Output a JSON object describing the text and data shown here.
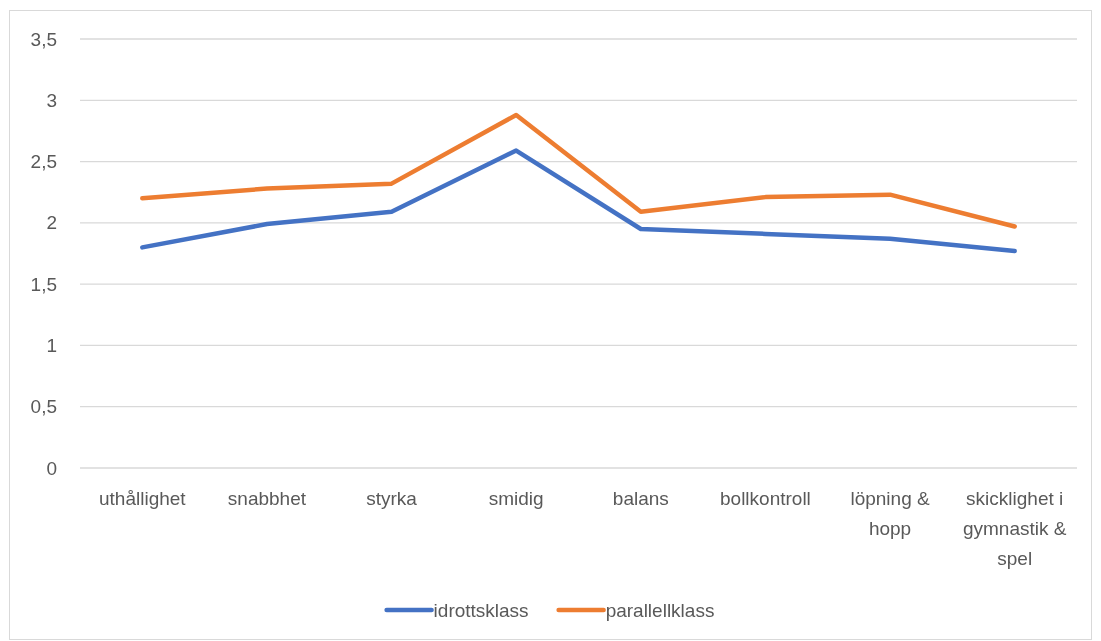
{
  "chart_data": {
    "type": "line",
    "categories": [
      "uthållighet",
      "snabbhet",
      "styrka",
      "smidig",
      "balans",
      "bollkontroll",
      "löpning & hopp",
      "skicklighet i gymnastik & spel"
    ],
    "series": [
      {
        "name": "idrottsklass",
        "color": "#4472c4",
        "values": [
          1.8,
          1.99,
          2.09,
          2.59,
          1.95,
          1.91,
          1.87,
          1.77
        ]
      },
      {
        "name": "parallellklass",
        "color": "#ed7d31",
        "values": [
          2.2,
          2.28,
          2.32,
          2.88,
          2.09,
          2.21,
          2.23,
          1.97
        ]
      }
    ],
    "ylim": [
      0,
      3.5
    ],
    "yticks": [
      0,
      {
        "value": 0.5,
        "label": "0,5"
      },
      1,
      {
        "value": 1.5,
        "label": "1,5"
      },
      2,
      {
        "value": 2.5,
        "label": "2,5"
      },
      3,
      {
        "value": 3.5,
        "label": "3,5"
      }
    ],
    "grid": "y",
    "legend": "bottom"
  }
}
